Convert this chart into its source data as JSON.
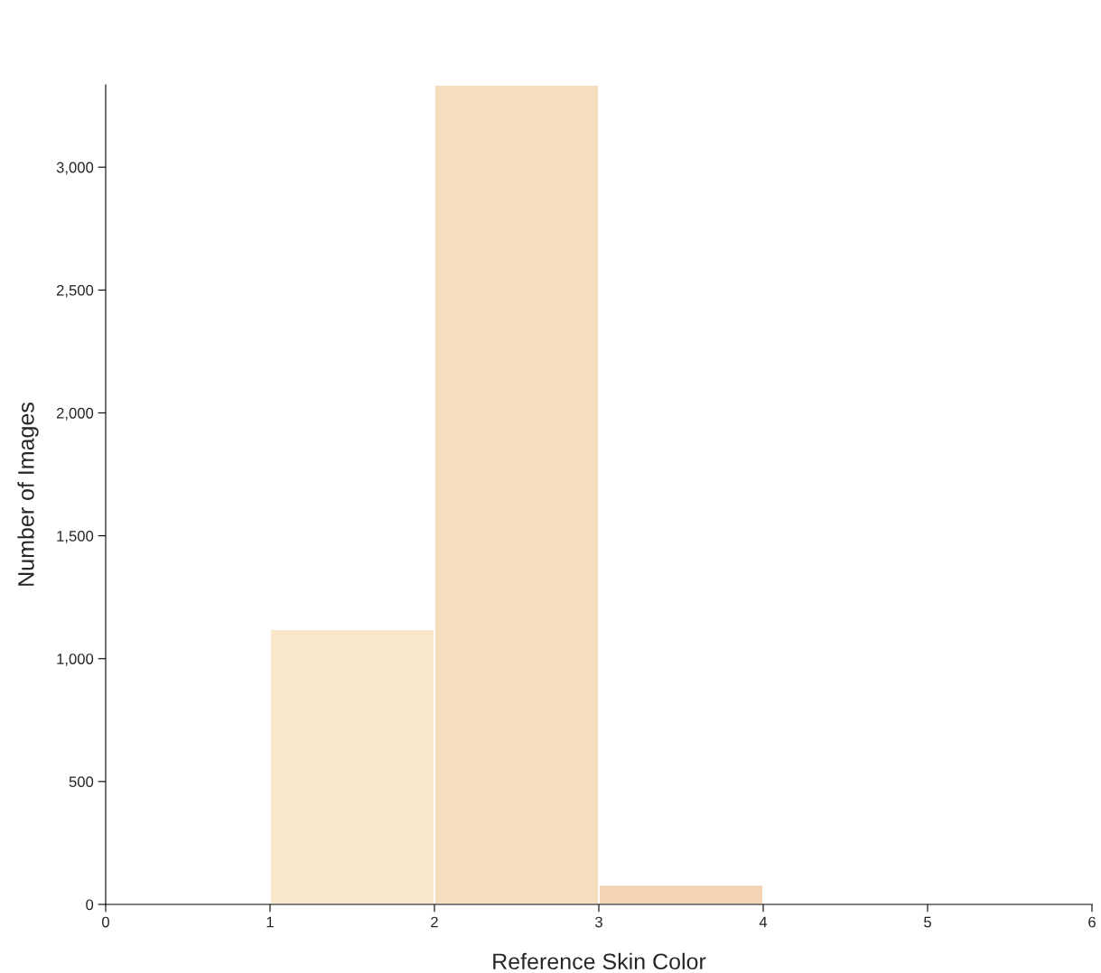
{
  "chart_data": {
    "type": "histogram",
    "xlabel": "Reference Skin Color",
    "ylabel": "Number of Images",
    "bins": [
      0,
      1,
      2,
      3,
      4,
      5,
      6
    ],
    "values": [
      0,
      1120,
      3335,
      80,
      0,
      0
    ],
    "colors": [
      "#f9e7c9",
      "#f9e7c9",
      "#f5ddbd",
      "#f3d3b3",
      "#f1cba9",
      "#eec3a0"
    ],
    "xlim": [
      0,
      6
    ],
    "xticks": [
      0,
      1,
      2,
      3,
      4,
      5,
      6
    ],
    "ylim": [
      0,
      3335
    ],
    "yticks": [
      0,
      500,
      {
        "value": 1000,
        "label": "1,000"
      },
      {
        "value": 1500,
        "label": "1,500"
      },
      {
        "value": 2000,
        "label": "2,000"
      },
      {
        "value": 2500,
        "label": "2,500"
      },
      {
        "value": 3000,
        "label": "3,000"
      }
    ],
    "grid": false
  }
}
